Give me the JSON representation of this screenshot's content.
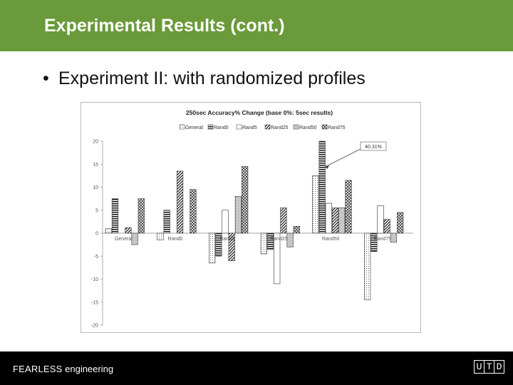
{
  "slide": {
    "title": "Experimental Results (cont.)",
    "bullet": "Experiment II: with randomized profiles"
  },
  "footer": {
    "brand_bold": "FEARLESS",
    "brand_rest": " engineering",
    "logo_letters": [
      "U",
      "T",
      "D"
    ]
  },
  "colors": {
    "title_bar": "#6a9a3a",
    "footer_bg": "#000000"
  },
  "chart_data": {
    "type": "bar",
    "title": "250sec Accuracy% Change (base 0%: 5sec results)",
    "categories": [
      "General",
      "Rand0",
      "Rand5",
      "Rand25",
      "Rand50",
      "Rand75"
    ],
    "series": [
      {
        "name": "General",
        "values": [
          1,
          -1.5,
          -6.5,
          -4.5,
          12.5,
          -14.5
        ]
      },
      {
        "name": "Rand0",
        "values": [
          7.5,
          5,
          -5,
          -3.5,
          20,
          -4
        ]
      },
      {
        "name": "Rand5",
        "values": [
          0,
          0,
          5,
          -11,
          6.5,
          6
        ]
      },
      {
        "name": "Rand25",
        "values": [
          1.2,
          13.5,
          -6,
          5.5,
          5.5,
          3
        ]
      },
      {
        "name": "Rand50",
        "values": [
          -2.5,
          0,
          8,
          -3,
          5.5,
          -2
        ]
      },
      {
        "name": "Rand75",
        "values": [
          7.5,
          9.5,
          14.5,
          1.5,
          11.5,
          4.5
        ]
      }
    ],
    "ylim": [
      -20,
      20
    ],
    "yticks": [
      20,
      15,
      10,
      5,
      0,
      -5,
      -10,
      -15,
      -20
    ],
    "annotation": "40.31%",
    "grid": false,
    "legend_position": "top"
  }
}
